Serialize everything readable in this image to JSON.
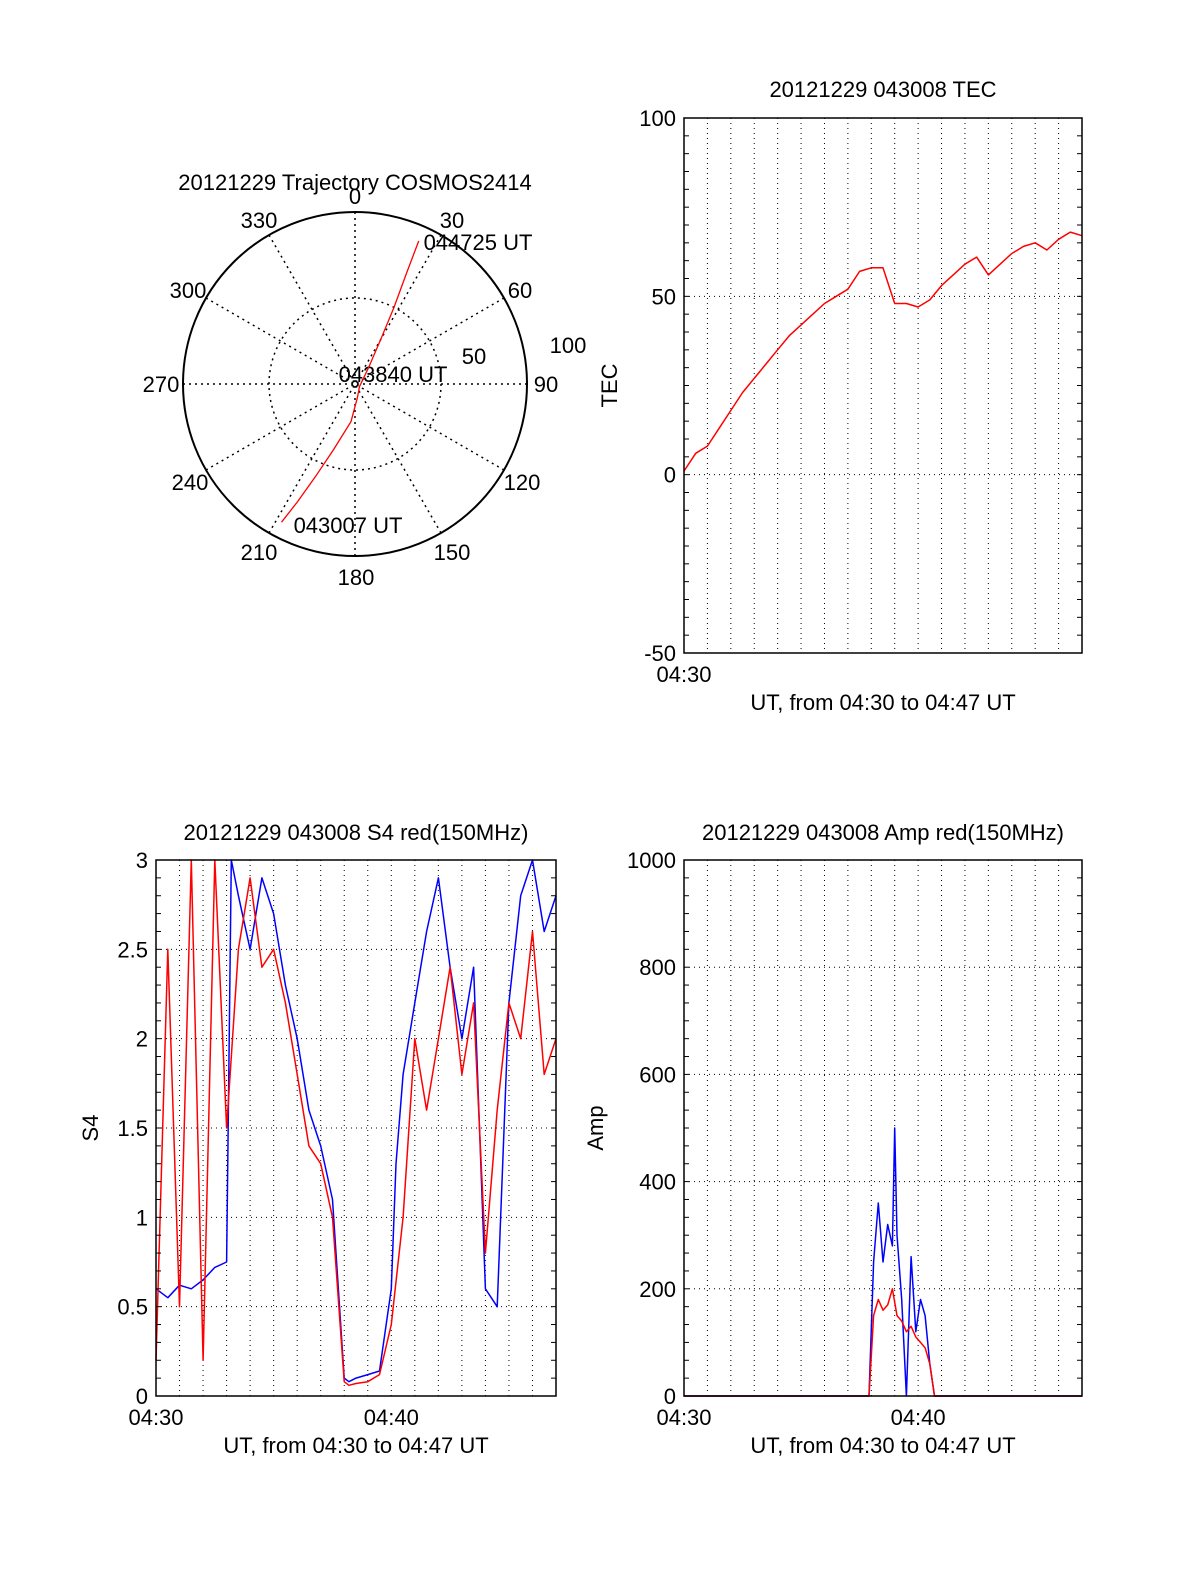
{
  "chart_data": [
    {
      "type": "polar",
      "title": "20121229 Trajectory COSMOS2414",
      "azimuth_labels": [
        "0",
        "30",
        "60",
        "90",
        "120",
        "150",
        "180",
        "210",
        "240",
        "270",
        "300",
        "330"
      ],
      "radial_labels": [
        "50",
        "100"
      ],
      "rlim": [
        0,
        100
      ],
      "grid": true,
      "annotations": [
        "044725 UT",
        "043840 UT",
        "043007 UT"
      ],
      "series": [
        {
          "color": "#ff0000",
          "points": [
            {
              "az": 208,
              "r": 91
            },
            {
              "az": 206,
              "r": 76
            },
            {
              "az": 203,
              "r": 58
            },
            {
              "az": 198,
              "r": 40
            },
            {
              "az": 186,
              "r": 22
            },
            {
              "az": 170,
              "r": 8
            },
            {
              "az": 120,
              "r": 3
            },
            {
              "az": 40,
              "r": 12
            },
            {
              "az": 30,
              "r": 30
            },
            {
              "az": 27,
              "r": 50
            },
            {
              "az": 25,
              "r": 70
            },
            {
              "az": 24,
              "r": 91
            }
          ]
        }
      ]
    },
    {
      "type": "line",
      "title": "20121229 043008 TEC",
      "xlabel": "UT, from 04:30 to 04:47 UT",
      "ylabel": "TEC",
      "xlim": [
        0,
        17
      ],
      "ylim": [
        -50,
        100
      ],
      "yticks": [
        "100",
        "50",
        "0",
        "-50"
      ],
      "xtick_labels": [
        "04:30"
      ],
      "grid": true,
      "series": [
        {
          "color": "#ff0000",
          "x": [
            0,
            0.5,
            1,
            1.5,
            2,
            2.5,
            3,
            3.5,
            4,
            4.5,
            5,
            5.5,
            6,
            6.5,
            7,
            7.5,
            8,
            8.5,
            9,
            9.5,
            10,
            10.5,
            11,
            11.5,
            12,
            12.5,
            13,
            13.5,
            14,
            14.5,
            15,
            15.5,
            16,
            16.5,
            17
          ],
          "y": [
            1,
            6,
            8,
            13,
            18,
            23,
            27,
            31,
            35,
            39,
            42,
            45,
            48,
            50,
            52,
            57,
            58,
            58,
            48,
            48,
            47,
            49,
            53,
            56,
            59,
            61,
            56,
            59,
            62,
            64,
            65,
            63,
            66,
            68,
            67
          ]
        }
      ]
    },
    {
      "type": "line",
      "title": "20121229 043008 S4 red(150MHz)",
      "xlabel": "UT, from 04:30 to 04:47 UT",
      "ylabel": "S4",
      "xlim": [
        0,
        17
      ],
      "ylim": [
        0,
        3
      ],
      "yticks": [
        "3",
        "2.5",
        "2",
        "1.5",
        "1",
        "0.5",
        "0"
      ],
      "xtick_labels": [
        "04:30",
        "04:40"
      ],
      "grid": true,
      "series": [
        {
          "color": "#0000ff",
          "x": [
            0,
            0.5,
            1,
            1.5,
            2,
            2.5,
            3,
            3.2,
            3.5,
            4,
            4.5,
            5,
            5.5,
            6,
            6.5,
            7,
            7.5,
            8,
            8.2,
            8.5,
            9,
            9.5,
            10,
            10.2,
            10.5,
            11,
            11.5,
            12,
            12.5,
            13,
            13.5,
            14,
            14.5,
            15,
            15.5,
            16,
            16.5,
            17
          ],
          "y": [
            0.6,
            0.55,
            0.62,
            0.6,
            0.65,
            0.72,
            0.75,
            3.0,
            2.8,
            2.5,
            2.9,
            2.7,
            2.3,
            2.0,
            1.6,
            1.4,
            1.1,
            0.1,
            0.08,
            0.1,
            0.12,
            0.14,
            0.6,
            1.3,
            1.8,
            2.2,
            2.6,
            2.9,
            2.4,
            2.0,
            2.4,
            0.6,
            0.5,
            2.2,
            2.8,
            3.0,
            2.6,
            2.8
          ]
        },
        {
          "color": "#ff0000",
          "x": [
            0,
            0.5,
            1,
            1.5,
            2,
            2.5,
            3,
            3.5,
            4,
            4.5,
            5,
            5.5,
            6,
            6.5,
            7,
            7.5,
            8,
            8.2,
            8.5,
            9,
            9.5,
            10,
            10.5,
            11,
            11.5,
            12,
            12.5,
            13,
            13.5,
            14,
            14.5,
            15,
            15.5,
            16,
            16.5,
            17
          ],
          "y": [
            0.2,
            2.5,
            0.5,
            3.0,
            0.2,
            3.0,
            1.5,
            2.5,
            2.9,
            2.4,
            2.5,
            2.2,
            1.8,
            1.4,
            1.3,
            1.0,
            0.08,
            0.06,
            0.07,
            0.08,
            0.12,
            0.4,
            1.0,
            2.0,
            1.6,
            2.0,
            2.4,
            1.8,
            2.2,
            0.8,
            1.6,
            2.2,
            2.0,
            2.6,
            1.8,
            2.0
          ]
        }
      ]
    },
    {
      "type": "line",
      "title": "20121229 043008 Amp red(150MHz)",
      "xlabel": "UT, from 04:30 to 04:47 UT",
      "ylabel": "Amp",
      "xlim": [
        0,
        17
      ],
      "ylim": [
        0,
        1000
      ],
      "yticks": [
        "1000",
        "800",
        "600",
        "400",
        "200",
        "0"
      ],
      "xtick_labels": [
        "04:30",
        "04:40"
      ],
      "grid": true,
      "series": [
        {
          "color": "#0000ff",
          "x": [
            0,
            7,
            7.9,
            8.1,
            8.3,
            8.5,
            8.7,
            8.9,
            9.0,
            9.1,
            9.3,
            9.5,
            9.7,
            9.9,
            10.1,
            10.3,
            10.5,
            10.7,
            11,
            17
          ],
          "y": [
            0,
            0,
            0,
            250,
            360,
            250,
            320,
            280,
            500,
            300,
            180,
            0,
            260,
            120,
            180,
            150,
            60,
            0,
            0,
            0
          ]
        },
        {
          "color": "#ff0000",
          "x": [
            0,
            7,
            7.9,
            8.1,
            8.3,
            8.5,
            8.7,
            8.9,
            9.1,
            9.3,
            9.5,
            9.7,
            9.9,
            10.1,
            10.3,
            10.5,
            10.7,
            11,
            17
          ],
          "y": [
            0,
            0,
            0,
            150,
            180,
            160,
            170,
            200,
            150,
            140,
            120,
            130,
            110,
            100,
            90,
            60,
            0,
            0,
            0
          ]
        }
      ]
    }
  ]
}
